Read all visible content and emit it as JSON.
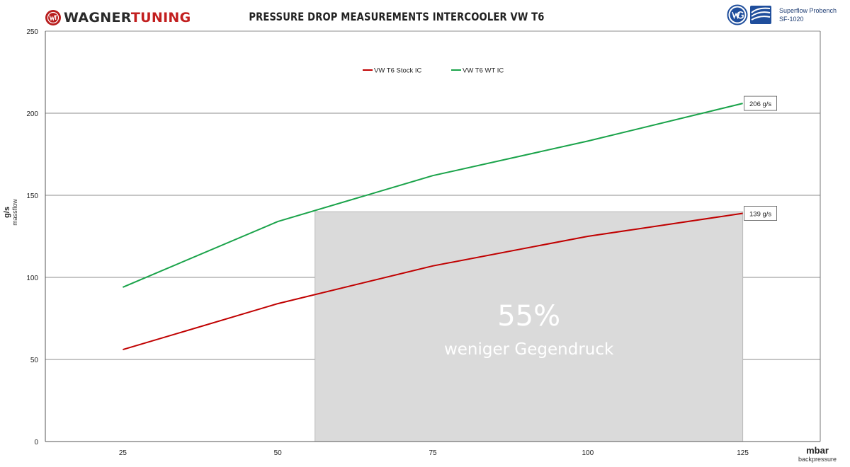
{
  "brand": {
    "part1": "WAGNER",
    "part2": "TUNING",
    "badge_icon": "wt-badge-icon",
    "badge_color": "#b81d1d"
  },
  "header": {
    "title": "PRESSURE DROP MEASUREMENTS INTERCOOLER VW T6"
  },
  "bench": {
    "line1": "Superflow Probench",
    "line2": "SF-1020",
    "logos": [
      "wg-logo-icon",
      "superflow-logo-icon"
    ]
  },
  "axis_labels": {
    "y_main": "g/s",
    "y_sub": "massflow",
    "x_main": "mbar",
    "x_sub": "backpressure"
  },
  "chart_data": {
    "type": "line",
    "x": [
      25,
      50,
      75,
      100,
      125
    ],
    "xlim": [
      12.5,
      137.5
    ],
    "ylim": [
      0,
      250
    ],
    "y_ticks": [
      0,
      50,
      100,
      150,
      200,
      250
    ],
    "grid": true,
    "legend_position": "top-center",
    "series": [
      {
        "name": "VW T6 Stock IC",
        "color": "#c00000",
        "values": [
          56,
          84,
          107,
          125,
          139
        ]
      },
      {
        "name": "VW T6 WT IC",
        "color": "#1aa34a",
        "values": [
          94,
          134,
          162,
          183,
          206
        ]
      }
    ],
    "end_labels": [
      "139 g/s",
      "206 g/s"
    ],
    "highlight": {
      "x_start": 56,
      "x_end": 125,
      "y_top": 140,
      "big_text": "55%",
      "sub_text": "weniger Gegendruck",
      "color": "#dadada"
    }
  }
}
